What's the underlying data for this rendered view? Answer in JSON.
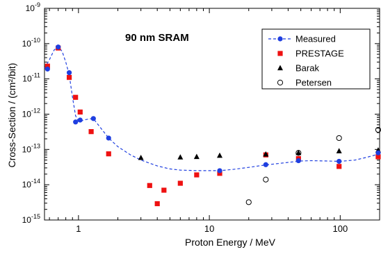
{
  "chart_data": {
    "type": "scatter",
    "title": "90 nm SRAM",
    "xlabel": "Proton Energy / MeV",
    "ylabel": "Cross-Section / (cm²/bit)",
    "x_scale": "log",
    "y_scale": "log",
    "xlim": [
      0.55,
      200
    ],
    "ylim": [
      1e-15,
      1e-09
    ],
    "x_ticks": [
      {
        "value": 1,
        "label": "1"
      },
      {
        "value": 10,
        "label": "10"
      },
      {
        "value": 100,
        "label": "100"
      }
    ],
    "y_ticks": [
      {
        "value": 1e-09,
        "base": "10",
        "exp": "-9"
      },
      {
        "value": 1e-10,
        "base": "10",
        "exp": "-10"
      },
      {
        "value": 1e-11,
        "base": "10",
        "exp": "-11"
      },
      {
        "value": 1e-12,
        "base": "10",
        "exp": "-12"
      },
      {
        "value": 1e-13,
        "base": "10",
        "exp": "-13"
      },
      {
        "value": 1e-14,
        "base": "10",
        "exp": "-14"
      },
      {
        "value": 1e-15,
        "base": "10",
        "exp": "-15"
      }
    ],
    "grid": false,
    "legend_position": "top-right",
    "series": [
      {
        "name": "Measured",
        "marker": "circle-filled",
        "color": "#1f3fe0",
        "line": "dashed",
        "x": [
          0.58,
          0.7,
          0.85,
          0.95,
          1.03,
          1.3,
          1.7,
          12,
          27,
          48,
          98,
          195
        ],
        "y": [
          1.9e-11,
          8e-11,
          1.5e-11,
          6e-13,
          6.8e-13,
          7.5e-13,
          2.1e-13,
          2.5e-14,
          3.7e-14,
          4.8e-14,
          4.6e-14,
          8e-14
        ]
      },
      {
        "name": "PRESTAGE",
        "marker": "square-filled",
        "color": "#ee1111",
        "x": [
          0.58,
          0.7,
          0.85,
          0.95,
          1.03,
          1.25,
          1.7,
          3.5,
          4.5,
          6,
          8,
          12,
          27,
          48,
          98,
          195
        ],
        "y": [
          2.3e-11,
          7.5e-11,
          1.1e-11,
          3e-12,
          1.15e-12,
          3.2e-13,
          7.5e-14,
          9.5e-15,
          7e-15,
          1.1e-14,
          1.9e-14,
          2.1e-14,
          7e-14,
          5.5e-14,
          3.3e-14,
          6.2e-14
        ]
      },
      {
        "name": "Barak",
        "marker": "triangle-filled",
        "color": "#000000",
        "x": [
          3,
          6,
          8,
          12,
          27,
          48,
          98,
          195
        ],
        "y": [
          5.8e-14,
          6e-14,
          6.2e-14,
          6.7e-14,
          7.3e-14,
          8e-14,
          9e-14,
          9.5e-14
        ]
      },
      {
        "name": "Petersen",
        "marker": "circle-open",
        "color": "#000000",
        "x": [
          20,
          27,
          48,
          98,
          195
        ],
        "y": [
          3.2e-15,
          1.4e-14,
          8e-14,
          2.1e-13,
          3.6e-13
        ]
      }
    ],
    "prestage_extra_low_point": {
      "x": 4,
      "y": 2.9e-15
    },
    "measured_fit_curve": {
      "x": [
        0.55,
        0.6,
        0.65,
        0.7,
        0.75,
        0.8,
        0.85,
        0.9,
        0.95,
        1.0,
        1.1,
        1.2,
        1.3,
        1.5,
        1.7,
        2.0,
        2.5,
        3,
        4,
        5,
        6,
        8,
        10,
        12,
        15,
        20,
        25,
        30,
        40,
        50,
        60,
        80,
        100,
        130,
        160,
        200
      ],
      "y": [
        2e-11,
        3.5e-11,
        6.5e-11,
        8.3e-11,
        6e-11,
        3e-11,
        1.3e-11,
        3e-12,
        9e-13,
        6.2e-13,
        6.8e-13,
        7.3e-13,
        7.5e-13,
        3.8e-13,
        2.1e-13,
        1.2e-13,
        7e-14,
        5e-14,
        3.4e-14,
        2.8e-14,
        2.6e-14,
        2.5e-14,
        2.5e-14,
        2.5e-14,
        2.7e-14,
        3.1e-14,
        3.5e-14,
        3.8e-14,
        4.3e-14,
        4.7e-14,
        4.8e-14,
        4.7e-14,
        4.6e-14,
        5e-14,
        6e-14,
        7.5e-14
      ]
    }
  }
}
